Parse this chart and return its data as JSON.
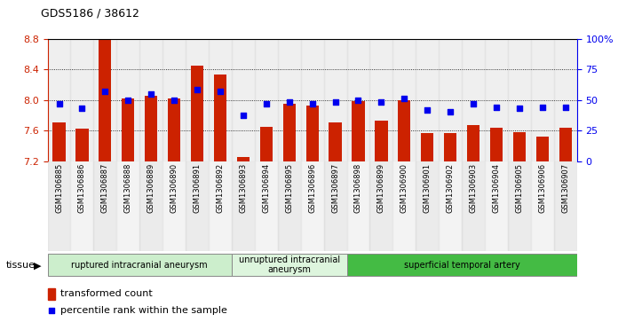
{
  "title": "GDS5186 / 38612",
  "samples": [
    "GSM1306885",
    "GSM1306886",
    "GSM1306887",
    "GSM1306888",
    "GSM1306889",
    "GSM1306890",
    "GSM1306891",
    "GSM1306892",
    "GSM1306893",
    "GSM1306894",
    "GSM1306895",
    "GSM1306896",
    "GSM1306897",
    "GSM1306898",
    "GSM1306899",
    "GSM1306900",
    "GSM1306901",
    "GSM1306902",
    "GSM1306903",
    "GSM1306904",
    "GSM1306905",
    "GSM1306906",
    "GSM1306907"
  ],
  "bar_values": [
    7.7,
    7.62,
    8.78,
    8.02,
    8.05,
    8.02,
    8.45,
    8.33,
    7.25,
    7.65,
    7.95,
    7.93,
    7.7,
    7.98,
    7.73,
    7.99,
    7.57,
    7.57,
    7.67,
    7.63,
    7.58,
    7.52,
    7.64
  ],
  "percentile_values": [
    47,
    43,
    57,
    50,
    55,
    50,
    58,
    57,
    37,
    47,
    48,
    47,
    48,
    50,
    48,
    51,
    42,
    40,
    47,
    44,
    43,
    44,
    44
  ],
  "ylim_left": [
    7.2,
    8.8
  ],
  "ylim_right": [
    0,
    100
  ],
  "bar_color": "#cc2200",
  "dot_color": "#0000ee",
  "tissue_groups": [
    {
      "label": "ruptured intracranial aneurysm",
      "start": 0,
      "end": 8,
      "color": "#cceecc"
    },
    {
      "label": "unruptured intracranial\naneurysm",
      "start": 8,
      "end": 13,
      "color": "#ddf5dd"
    },
    {
      "label": "superficial temporal artery",
      "start": 13,
      "end": 23,
      "color": "#44bb44"
    }
  ],
  "xlabel_tissue": "tissue",
  "legend_bar_label": "transformed count",
  "legend_dot_label": "percentile rank within the sample",
  "yticks_left": [
    7.2,
    7.6,
    8.0,
    8.4,
    8.8
  ],
  "yticks_right": [
    0,
    25,
    50,
    75,
    100
  ],
  "right_tick_labels": [
    "0",
    "25",
    "50",
    "75",
    "100%"
  ]
}
